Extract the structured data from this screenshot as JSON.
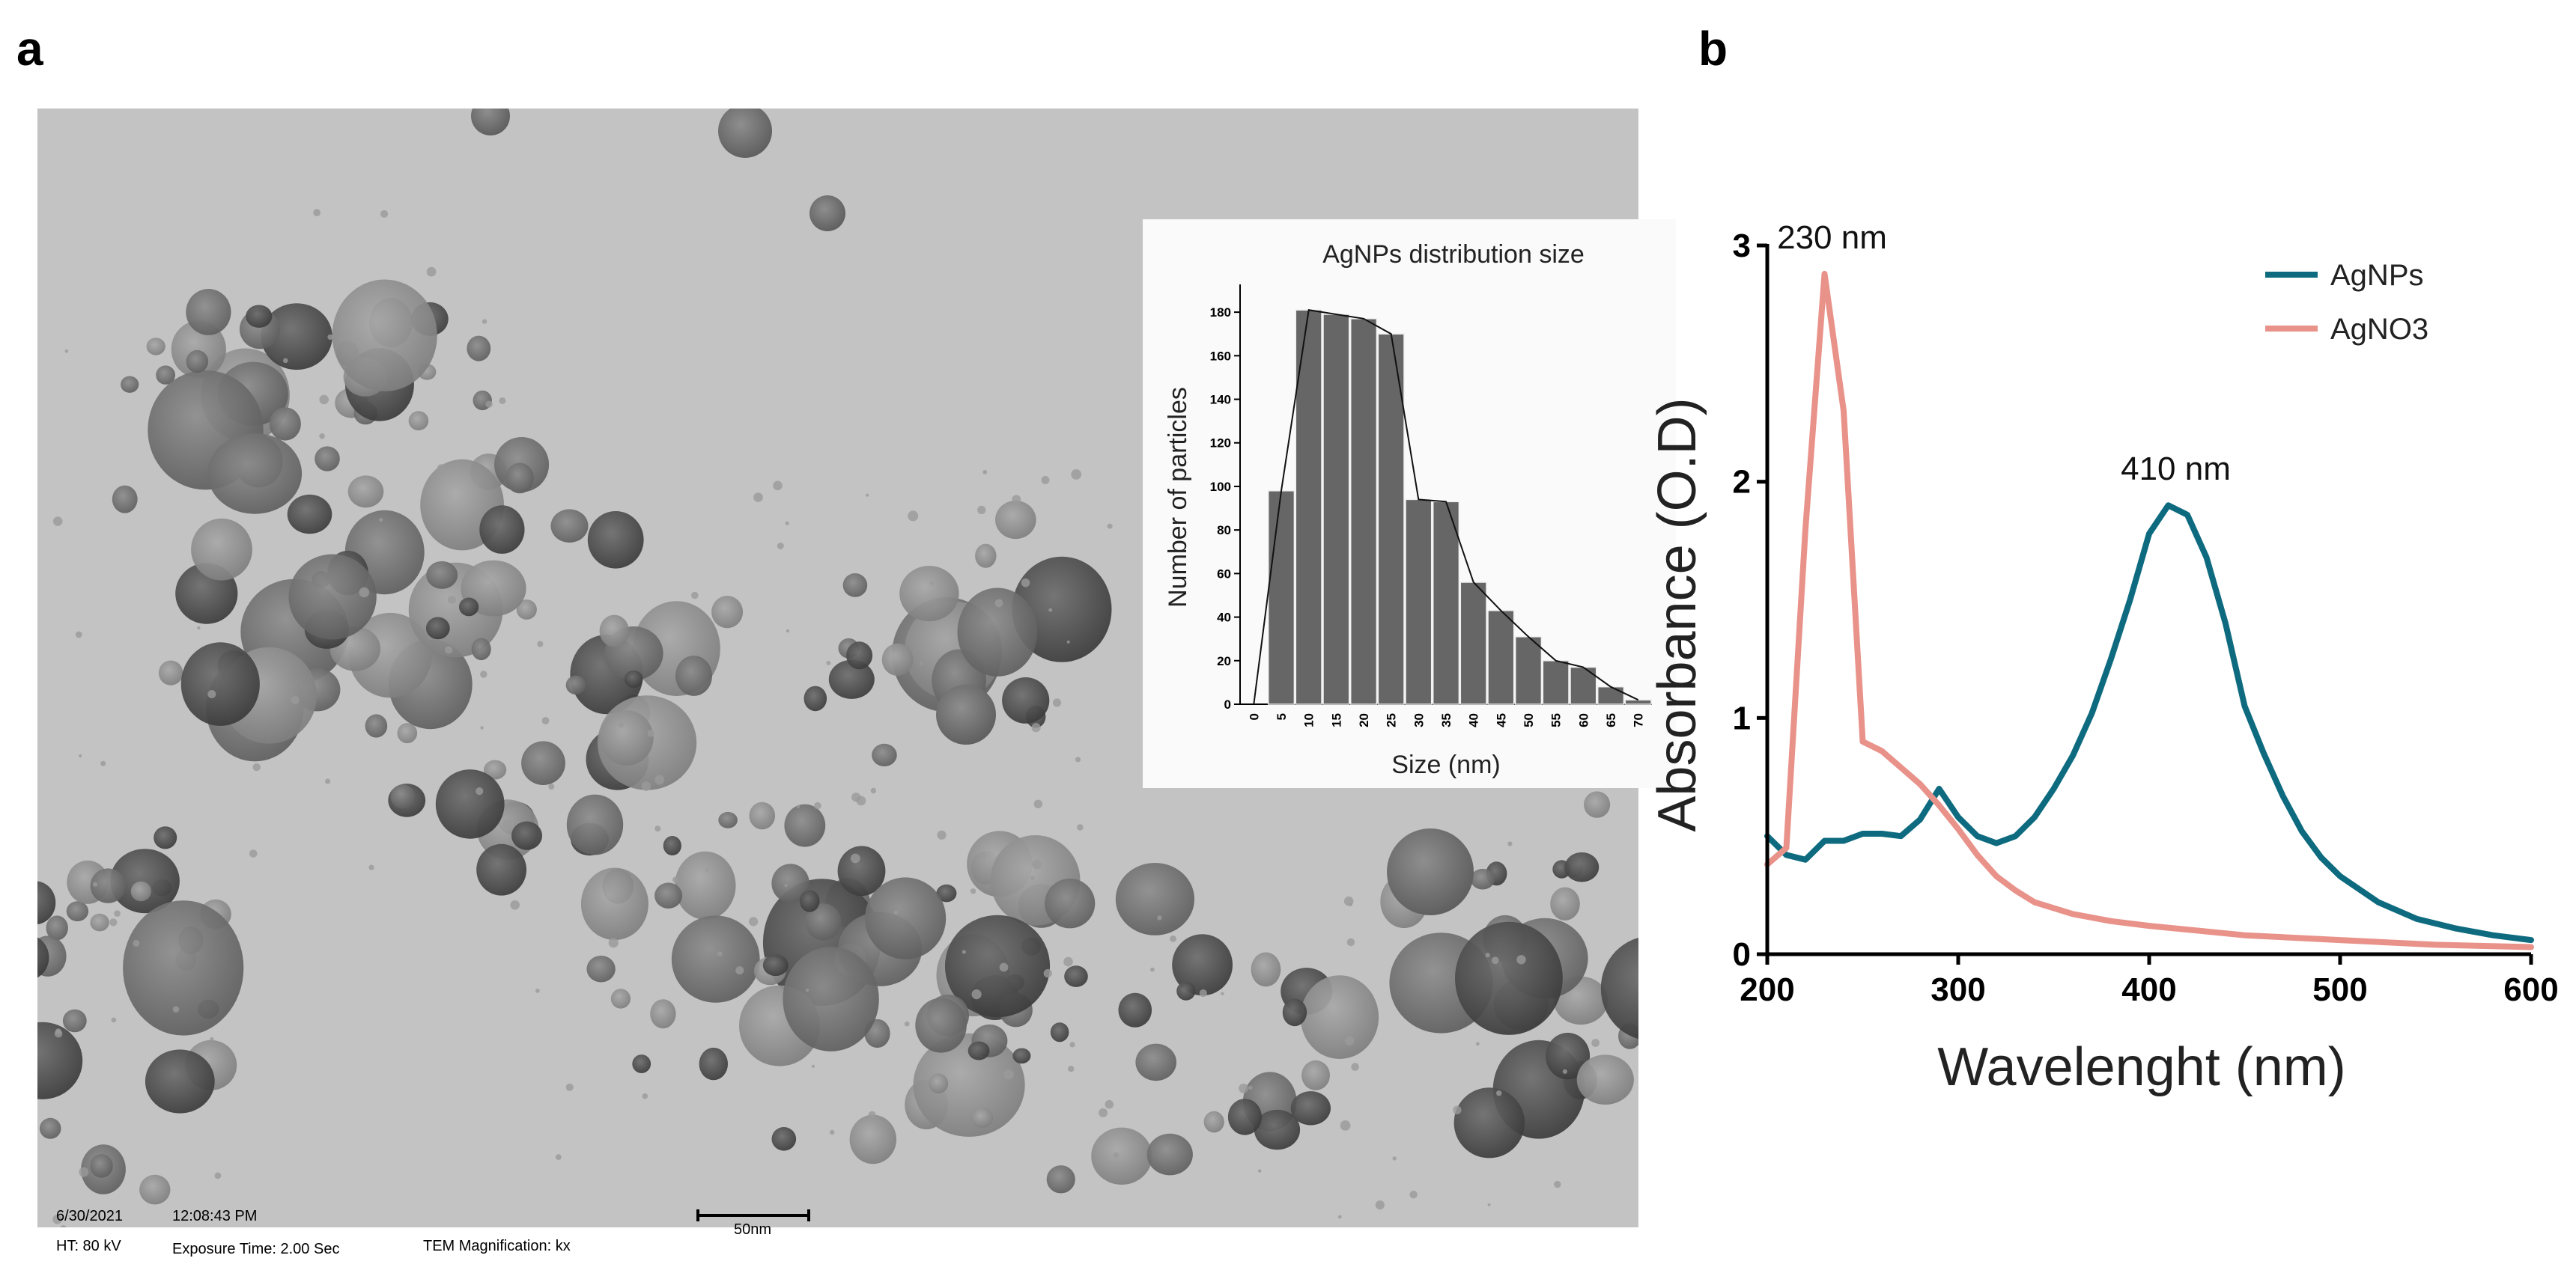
{
  "panels": {
    "a_label": "a",
    "b_label": "b"
  },
  "tem": {
    "footer": {
      "date": "6/30/2021",
      "time": "12:08:43 PM",
      "ht": "HT: 80 kV",
      "exposure": "Exposure Time: 2.00 Sec",
      "magnification": "TEM Magnification: kx",
      "scale_bar": "50nm"
    }
  },
  "chart_data": [
    {
      "type": "bar",
      "title": "AgNPs distribution size",
      "xlabel": "Size (nm)",
      "ylabel": "Number of particles",
      "categories": [
        "0",
        "5",
        "10",
        "15",
        "20",
        "25",
        "30",
        "35",
        "40",
        "45",
        "50",
        "55",
        "60",
        "65",
        "70"
      ],
      "values": [
        0,
        98,
        181,
        179,
        177,
        170,
        94,
        93,
        56,
        43,
        31,
        20,
        17,
        8,
        2
      ],
      "ylim": [
        0,
        190
      ],
      "yticks": [
        0,
        20,
        40,
        60,
        80,
        100,
        120,
        140,
        160,
        180
      ],
      "bar_color": "#666666",
      "overlay_line": true,
      "grid": false
    },
    {
      "type": "line",
      "xlabel": "Wavelenght (nm)",
      "ylabel": "Absorbance (O.D)",
      "xlim": [
        200,
        600
      ],
      "ylim": [
        0,
        3
      ],
      "xticks": [
        200,
        300,
        400,
        500,
        600
      ],
      "yticks": [
        0,
        1,
        2,
        3
      ],
      "legend_position": "top-right",
      "series": [
        {
          "name": "AgNPs",
          "color": "#0e6b7f",
          "x": [
            200,
            210,
            220,
            230,
            240,
            250,
            260,
            270,
            280,
            290,
            300,
            310,
            320,
            330,
            340,
            350,
            360,
            370,
            380,
            390,
            400,
            410,
            420,
            430,
            440,
            450,
            460,
            470,
            480,
            490,
            500,
            520,
            540,
            560,
            580,
            600
          ],
          "y": [
            0.5,
            0.42,
            0.4,
            0.48,
            0.48,
            0.51,
            0.51,
            0.5,
            0.57,
            0.7,
            0.58,
            0.5,
            0.47,
            0.5,
            0.58,
            0.7,
            0.84,
            1.02,
            1.25,
            1.5,
            1.78,
            1.9,
            1.86,
            1.68,
            1.4,
            1.05,
            0.85,
            0.67,
            0.52,
            0.41,
            0.33,
            0.22,
            0.15,
            0.11,
            0.08,
            0.06
          ]
        },
        {
          "name": "AgNO3",
          "color": "#e8928a",
          "x": [
            200,
            210,
            220,
            230,
            240,
            250,
            260,
            270,
            280,
            290,
            300,
            310,
            320,
            330,
            340,
            360,
            380,
            400,
            450,
            500,
            550,
            600
          ],
          "y": [
            0.38,
            0.45,
            1.8,
            2.88,
            2.3,
            0.9,
            0.86,
            0.79,
            0.72,
            0.63,
            0.53,
            0.42,
            0.33,
            0.27,
            0.22,
            0.17,
            0.14,
            0.12,
            0.08,
            0.06,
            0.04,
            0.03
          ]
        }
      ],
      "annotations": [
        {
          "text": "230 nm",
          "x": 230,
          "y": 2.88
        },
        {
          "text": "410 nm",
          "x": 410,
          "y": 1.9
        }
      ]
    }
  ]
}
